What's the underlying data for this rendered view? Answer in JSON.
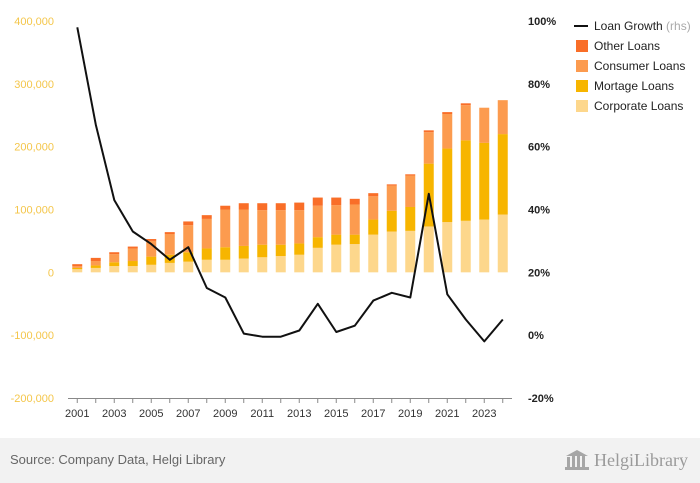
{
  "chart_data": {
    "type": "bar",
    "stacked": true,
    "categories": [
      "2001",
      "2002",
      "2003",
      "2004",
      "2005",
      "2006",
      "2007",
      "2008",
      "2009",
      "2010",
      "2011",
      "2012",
      "2013",
      "2014",
      "2015",
      "2016",
      "2017",
      "2018",
      "2019",
      "2020",
      "2021",
      "2022",
      "2023",
      "2024"
    ],
    "x_tick_labels": [
      "2001",
      "2003",
      "2005",
      "2007",
      "2009",
      "2011",
      "2013",
      "2015",
      "2017",
      "2019",
      "2021",
      "2023"
    ],
    "series": [
      {
        "name": "Corporate Loans",
        "color": "#fdd78c",
        "values": [
          5000,
          7000,
          10000,
          10000,
          12000,
          15000,
          17000,
          20000,
          20000,
          22000,
          24000,
          26000,
          28000,
          39000,
          44000,
          45000,
          60000,
          65000,
          66000,
          73000,
          80000,
          82000,
          84000,
          92000
        ]
      },
      {
        "name": "Mortage Loans",
        "color": "#f7b500",
        "values": [
          2000,
          4000,
          6000,
          8000,
          13000,
          13000,
          15000,
          18000,
          20000,
          20000,
          20000,
          18000,
          18000,
          17000,
          16000,
          15000,
          24000,
          33000,
          38000,
          100000,
          117000,
          128000,
          122000,
          128000
        ]
      },
      {
        "name": "Consumer Loans",
        "color": "#fc9b4f",
        "values": [
          3000,
          7000,
          13000,
          20000,
          25000,
          33000,
          43000,
          47000,
          60000,
          58000,
          55000,
          55000,
          53000,
          50000,
          47000,
          48000,
          37000,
          40000,
          50000,
          50000,
          55000,
          56000,
          56000,
          54000
        ]
      },
      {
        "name": "Other Loans",
        "color": "#f96e28",
        "values": [
          3000,
          5000,
          3000,
          3000,
          3000,
          3000,
          6000,
          6000,
          6000,
          10000,
          11000,
          11000,
          12000,
          13000,
          12000,
          9000,
          5000,
          2000,
          2000,
          3000,
          3000,
          3000,
          0,
          0
        ]
      }
    ],
    "line_series": {
      "name": "Loan Growth",
      "name_suffix": "(rhs)",
      "axis": "right",
      "color": "#111111",
      "values": [
        98,
        67,
        43,
        33,
        29,
        24,
        28,
        15,
        12,
        0.5,
        -0.5,
        -0.5,
        1.5,
        10,
        1,
        3,
        11,
        13.5,
        12,
        45,
        13,
        5,
        -2,
        5
      ]
    },
    "y_left": {
      "min": -200000,
      "max": 400000,
      "ticks": [
        -200000,
        -100000,
        0,
        100000,
        200000,
        300000,
        400000
      ],
      "tick_labels": [
        "-200,000",
        "-100,000",
        "0",
        "100,000",
        "200,000",
        "300,000",
        "400,000"
      ]
    },
    "y_right": {
      "min": -20,
      "max": 100,
      "ticks": [
        -20,
        0,
        20,
        40,
        60,
        80,
        100
      ],
      "tick_labels": [
        "-20%",
        "0%",
        "20%",
        "40%",
        "60%",
        "80%",
        "100%"
      ]
    },
    "legend_position": "top-right",
    "grid": false,
    "source": "Source: Company Data, Helgi Library",
    "logo": "HelgiLibrary"
  }
}
